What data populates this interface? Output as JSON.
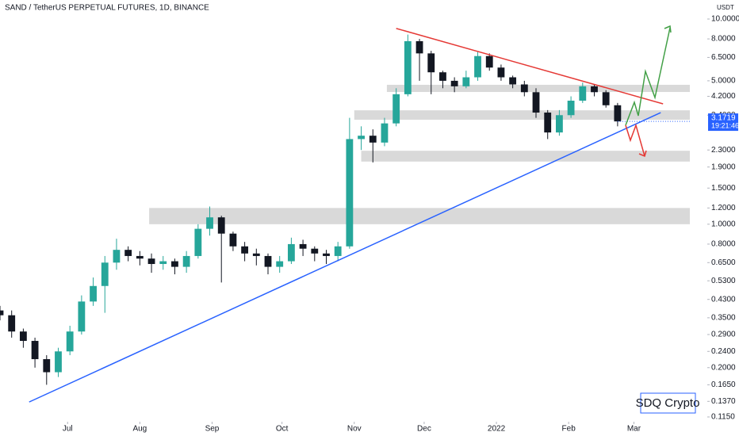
{
  "chart_data": {
    "type": "candlestick",
    "title": "SAND / TetherUS PERPETUAL FUTURES, 1D, BINANCE",
    "unit": "USDT",
    "log_scale": true,
    "grid": false,
    "up_color": "#26a69a",
    "down_color": "#131722",
    "open": [
      0.38,
      0.36,
      0.3,
      0.27,
      0.22,
      0.19,
      0.24,
      0.3,
      0.42,
      0.5,
      0.65,
      0.75,
      0.7,
      0.68,
      0.64,
      0.66,
      0.62,
      0.7,
      0.95,
      1.08,
      0.9,
      0.78,
      0.72,
      0.7,
      0.62,
      0.66,
      0.8,
      0.76,
      0.72,
      0.7,
      0.78,
      2.6,
      2.7,
      2.5,
      3.1,
      4.3,
      7.8,
      6.8,
      5.5,
      5.0,
      4.7,
      5.2,
      6.6,
      5.8,
      5.2,
      4.8,
      4.4,
      3.5,
      2.8,
      3.4,
      4.0,
      4.7,
      4.4,
      3.8
    ],
    "high": [
      0.4,
      0.38,
      0.31,
      0.28,
      0.23,
      0.25,
      0.32,
      0.45,
      0.55,
      0.7,
      0.85,
      0.78,
      0.74,
      0.72,
      0.7,
      0.68,
      0.74,
      1.0,
      1.22,
      1.1,
      0.92,
      0.82,
      0.76,
      0.72,
      0.7,
      0.86,
      0.84,
      0.78,
      0.75,
      0.82,
      3.3,
      3.0,
      2.9,
      3.3,
      4.6,
      8.4,
      8.0,
      7.0,
      5.6,
      5.2,
      5.6,
      6.9,
      6.8,
      6.0,
      5.3,
      5.0,
      4.6,
      3.6,
      3.6,
      4.2,
      4.9,
      4.8,
      4.5,
      3.9
    ],
    "low": [
      0.34,
      0.28,
      0.25,
      0.2,
      0.165,
      0.18,
      0.23,
      0.29,
      0.4,
      0.37,
      0.6,
      0.66,
      0.63,
      0.58,
      0.6,
      0.57,
      0.58,
      0.68,
      0.88,
      0.52,
      0.74,
      0.66,
      0.63,
      0.57,
      0.58,
      0.64,
      0.7,
      0.66,
      0.64,
      0.66,
      0.76,
      2.3,
      2.0,
      2.4,
      3.0,
      4.2,
      5.0,
      4.3,
      4.6,
      4.4,
      4.6,
      5.0,
      5.6,
      5.0,
      4.6,
      4.2,
      3.3,
      2.6,
      2.7,
      3.3,
      3.9,
      4.2,
      3.7,
      3.0
    ],
    "close": [
      0.36,
      0.3,
      0.27,
      0.22,
      0.19,
      0.24,
      0.3,
      0.42,
      0.5,
      0.65,
      0.75,
      0.7,
      0.68,
      0.64,
      0.66,
      0.62,
      0.7,
      0.95,
      1.08,
      0.9,
      0.78,
      0.72,
      0.7,
      0.62,
      0.66,
      0.8,
      0.76,
      0.72,
      0.7,
      0.78,
      2.6,
      2.7,
      2.5,
      3.1,
      4.3,
      7.8,
      6.8,
      5.5,
      5.0,
      4.7,
      5.2,
      6.6,
      5.8,
      5.2,
      4.8,
      4.4,
      3.5,
      2.8,
      3.4,
      4.0,
      4.7,
      4.4,
      3.8,
      3.17
    ],
    "xlim": [
      0,
      59.2
    ],
    "xticks": [
      {
        "value": 5.8,
        "label": "Jul"
      },
      {
        "value": 12,
        "label": "Aug"
      },
      {
        "value": 18.2,
        "label": "Sep"
      },
      {
        "value": 24.2,
        "label": "Oct"
      },
      {
        "value": 30.4,
        "label": "Nov"
      },
      {
        "value": 36.4,
        "label": "Dec"
      },
      {
        "value": 42.6,
        "label": "2022"
      },
      {
        "value": 48.8,
        "label": "Feb"
      },
      {
        "value": 54.4,
        "label": "Mar"
      }
    ],
    "ylim": [
      0.109,
      12.38
    ],
    "yticks": [
      {
        "value": 10,
        "label": "10.0000"
      },
      {
        "value": 8,
        "label": "8.0000"
      },
      {
        "value": 6.5,
        "label": "6.5000"
      },
      {
        "value": 5,
        "label": "5.0000"
      },
      {
        "value": 4.2,
        "label": "4.2000"
      },
      {
        "value": 3.4,
        "label": "3.4000"
      },
      {
        "value": 2.3,
        "label": "2.3000"
      },
      {
        "value": 1.9,
        "label": "1.9000"
      },
      {
        "value": 1.5,
        "label": "1.5000"
      },
      {
        "value": 1.2,
        "label": "1.2000"
      },
      {
        "value": 1,
        "label": "1.0000"
      },
      {
        "value": 0.8,
        "label": "0.8000"
      },
      {
        "value": 0.65,
        "label": "0.6500"
      },
      {
        "value": 0.53,
        "label": "0.5300"
      },
      {
        "value": 0.43,
        "label": "0.4300"
      },
      {
        "value": 0.35,
        "label": "0.3500"
      },
      {
        "value": 0.29,
        "label": "0.2900"
      },
      {
        "value": 0.24,
        "label": "0.2400"
      },
      {
        "value": 0.2,
        "label": "0.2000"
      },
      {
        "value": 0.165,
        "label": "0.1650"
      },
      {
        "value": 0.137,
        "label": "0.1370"
      },
      {
        "value": 0.115,
        "label": "0.1150"
      }
    ],
    "zones": [
      {
        "from": 33.2,
        "low": 4.41,
        "high": 4.78
      },
      {
        "from": 30.4,
        "low": 3.23,
        "high": 3.59
      },
      {
        "from": 31,
        "low": 2.02,
        "high": 2.28
      },
      {
        "from": 12.8,
        "low": 1.0,
        "high": 1.2
      }
    ],
    "zone_color": "#d9d9d9",
    "trendlines": [
      {
        "color": "#e53935",
        "x": [
          34,
          56.9
        ],
        "values": [
          9.0,
          3.86
        ]
      },
      {
        "color": "#2962ff",
        "x": [
          2.5,
          56.7
        ],
        "values": [
          0.136,
          3.5
        ]
      }
    ],
    "last_price": {
      "value": 3.1719,
      "countdown": "19:21:46",
      "color": "#2962ff"
    },
    "watermark": "SDQ Crypto"
  }
}
